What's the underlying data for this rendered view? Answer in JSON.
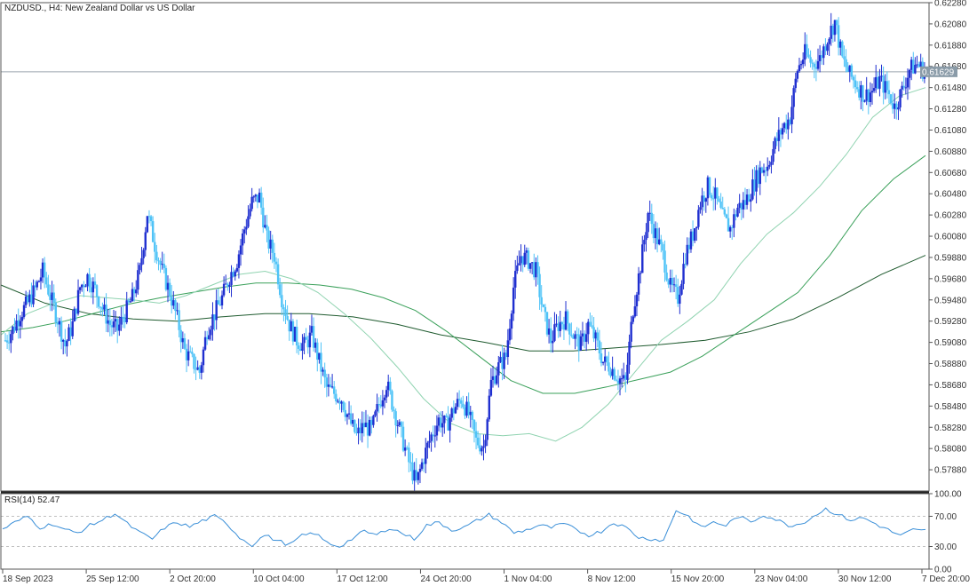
{
  "header": {
    "title": "NZDUSD., H4:  New Zealand Dollar vs US Dollar"
  },
  "current_price": {
    "label": "0.61629",
    "value": 0.61629,
    "color": "#8a9ba8"
  },
  "colors": {
    "bull_candle": "#1f2fd0",
    "bear_candle": "#4fc3f7",
    "ma_fast": "#8fd3b0",
    "ma_mid": "#3aa05a",
    "ma_slow": "#1e5a2e",
    "rsi_line": "#3a8fd8",
    "level_line": "#c0c0c0",
    "axis": "#555555"
  },
  "rsi": {
    "label": "RSI(14) 52.47",
    "period": 14,
    "current": 52.47,
    "levels": [
      70,
      30
    ],
    "ticks": [
      "100.00",
      "70.00",
      "30.00",
      "0.00"
    ]
  },
  "chart_data": {
    "type": "candlestick",
    "symbol": "NZDUSD.",
    "timeframe": "H4",
    "ylim": [
      0.5768,
      0.6228
    ],
    "y_ticks": [
      "0.62280",
      "0.62080",
      "0.61880",
      "0.61680",
      "0.61480",
      "0.61280",
      "0.61080",
      "0.60880",
      "0.60680",
      "0.60480",
      "0.60280",
      "0.60080",
      "0.59880",
      "0.59680",
      "0.59480",
      "0.59280",
      "0.59080",
      "0.58880",
      "0.58680",
      "0.58480",
      "0.58280",
      "0.58080",
      "0.57880"
    ],
    "x_ticks": [
      "18 Sep 2023",
      "25 Sep 12:00",
      "2 Oct 20:00",
      "10 Oct 04:00",
      "17 Oct 12:00",
      "24 Oct 20:00",
      "1 Nov 04:00",
      "8 Nov 12:00",
      "15 Nov 20:00",
      "23 Nov 04:00",
      "30 Nov 12:00",
      "7 Dec 20:00"
    ],
    "close_path": [
      0.591,
      0.592,
      0.5935,
      0.5945,
      0.5958,
      0.5975,
      0.5952,
      0.593,
      0.5905,
      0.5925,
      0.596,
      0.597,
      0.5958,
      0.594,
      0.5925,
      0.592,
      0.5935,
      0.595,
      0.5975,
      0.603,
      0.6,
      0.5975,
      0.5955,
      0.593,
      0.59,
      0.589,
      0.588,
      0.592,
      0.5935,
      0.595,
      0.597,
      0.5985,
      0.6015,
      0.604,
      0.6045,
      0.6005,
      0.599,
      0.595,
      0.5925,
      0.591,
      0.5905,
      0.5915,
      0.589,
      0.5865,
      0.586,
      0.5855,
      0.5835,
      0.582,
      0.583,
      0.5825,
      0.585,
      0.587,
      0.5845,
      0.582,
      0.5795,
      0.5775,
      0.58,
      0.582,
      0.5835,
      0.583,
      0.5845,
      0.5855,
      0.584,
      0.5815,
      0.581,
      0.587,
      0.5885,
      0.5895,
      0.596,
      0.599,
      0.5985,
      0.5975,
      0.5935,
      0.591,
      0.5925,
      0.593,
      0.5915,
      0.5905,
      0.5925,
      0.591,
      0.589,
      0.5885,
      0.5875,
      0.587,
      0.594,
      0.598,
      0.603,
      0.601,
      0.599,
      0.596,
      0.595,
      0.599,
      0.601,
      0.604,
      0.6055,
      0.6045,
      0.6025,
      0.6015,
      0.6035,
      0.604,
      0.6055,
      0.607,
      0.6075,
      0.6095,
      0.611,
      0.612,
      0.6165,
      0.618,
      0.617,
      0.6175,
      0.6195,
      0.621,
      0.6175,
      0.616,
      0.615,
      0.614,
      0.6145,
      0.6155,
      0.6145,
      0.613,
      0.6145,
      0.6165,
      0.617,
      0.6163
    ],
    "ma_fast": [
      0.5915,
      0.5935,
      0.5945,
      0.5952,
      0.595,
      0.5948,
      0.5945,
      0.5952,
      0.5962,
      0.5972,
      0.5975,
      0.5968,
      0.5955,
      0.5935,
      0.5912,
      0.5885,
      0.5855,
      0.5832,
      0.5822,
      0.582,
      0.5822,
      0.5815,
      0.5828,
      0.585,
      0.588,
      0.591,
      0.5928,
      0.5948,
      0.5982,
      0.601,
      0.603,
      0.6055,
      0.6085,
      0.612,
      0.614,
      0.6148
    ],
    "ma_mid": [
      0.5918,
      0.5922,
      0.5928,
      0.5936,
      0.5944,
      0.595,
      0.5955,
      0.596,
      0.5964,
      0.5964,
      0.5962,
      0.5958,
      0.595,
      0.5938,
      0.5918,
      0.5895,
      0.5872,
      0.586,
      0.586,
      0.5866,
      0.5873,
      0.588,
      0.5895,
      0.5915,
      0.5935,
      0.5955,
      0.599,
      0.6032,
      0.6062,
      0.6084
    ],
    "ma_slow": [
      0.5962,
      0.5945,
      0.5935,
      0.593,
      0.5928,
      0.5932,
      0.5935,
      0.5935,
      0.5932,
      0.5925,
      0.5915,
      0.5908,
      0.59,
      0.59,
      0.5903,
      0.5906,
      0.591,
      0.5918,
      0.593,
      0.595,
      0.5972,
      0.599
    ],
    "rsi_path": [
      53,
      62,
      70,
      55,
      60,
      52,
      48,
      58,
      65,
      74,
      60,
      48,
      40,
      55,
      62,
      56,
      64,
      70,
      60,
      42,
      32,
      45,
      38,
      32,
      44,
      48,
      35,
      30,
      40,
      50,
      45,
      55,
      48,
      40,
      58,
      62,
      52,
      55,
      64,
      72,
      62,
      48,
      52,
      58,
      55,
      60,
      52,
      45,
      50,
      62,
      55,
      42,
      40,
      38,
      78,
      70,
      55,
      62,
      58,
      70,
      62,
      72,
      66,
      58,
      60,
      70,
      80,
      72,
      65,
      68,
      60,
      52,
      44,
      52,
      50
    ]
  }
}
